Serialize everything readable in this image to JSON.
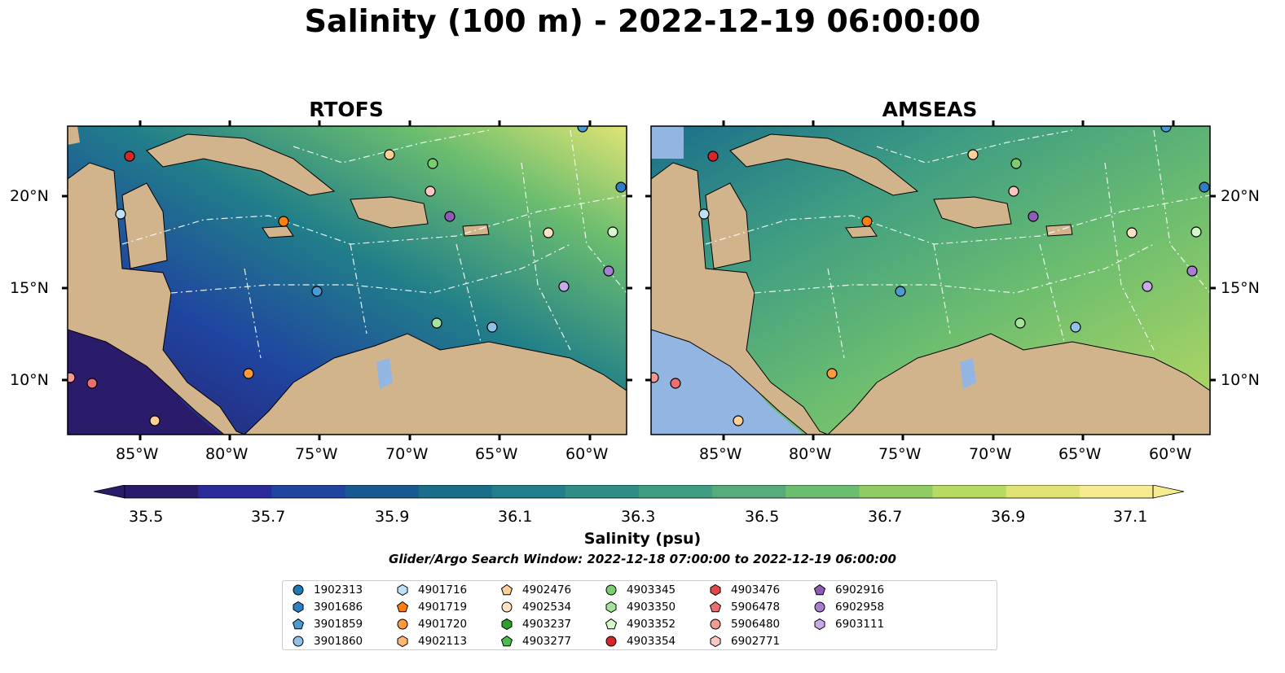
{
  "title": "Salinity (100 m) - 2022-12-19 06:00:00",
  "panels": [
    {
      "title": "RTOFS"
    },
    {
      "title": "AMSEAS"
    }
  ],
  "lon_ticks": [
    "85°W",
    "80°W",
    "75°W",
    "70°W",
    "65°W",
    "60°W"
  ],
  "lat_ticks": [
    "20°N",
    "15°N",
    "10°N"
  ],
  "colorbar": {
    "label": "Salinity (psu)",
    "ticks": [
      "35.5",
      "35.7",
      "35.9",
      "36.1",
      "36.3",
      "36.5",
      "36.7",
      "36.9",
      "37.1"
    ],
    "colors": [
      "#2b1b6b",
      "#2b2a9a",
      "#1f45a0",
      "#175a92",
      "#1a6e8a",
      "#217f89",
      "#2e8e86",
      "#3f9d82",
      "#55ac7a",
      "#6bbd6f",
      "#90cc62",
      "#b8d962",
      "#dfe474",
      "#f6ec8f"
    ],
    "extend": "both"
  },
  "search_window": "Glider/Argo Search Window: 2022-12-18 07:00:00 to 2022-12-19 06:00:00",
  "colors": {
    "land": "#d2b48c",
    "ocean_outside": "#93b5e1"
  },
  "legend": [
    {
      "id": "1902313",
      "marker": "circle",
      "color": "#1f77b4"
    },
    {
      "id": "3901686",
      "marker": "hexagon",
      "color": "#2c7fc2"
    },
    {
      "id": "3901859",
      "marker": "pentagon",
      "color": "#4a9ad6"
    },
    {
      "id": "3901860",
      "marker": "circle",
      "color": "#8fc1ea"
    },
    {
      "id": "4901716",
      "marker": "hexagon",
      "color": "#bfe1f8"
    },
    {
      "id": "4901719",
      "marker": "pentagon",
      "color": "#ff7f0e"
    },
    {
      "id": "4901720",
      "marker": "circle",
      "color": "#ff9a3c"
    },
    {
      "id": "4902113",
      "marker": "hexagon",
      "color": "#ffb870"
    },
    {
      "id": "4902476",
      "marker": "pentagon",
      "color": "#ffcf96"
    },
    {
      "id": "4902534",
      "marker": "circle",
      "color": "#ffe3c4"
    },
    {
      "id": "4903237",
      "marker": "hexagon",
      "color": "#2ca02c"
    },
    {
      "id": "4903277",
      "marker": "pentagon",
      "color": "#4dbb4d"
    },
    {
      "id": "4903345",
      "marker": "circle",
      "color": "#79cf6f"
    },
    {
      "id": "4903350",
      "marker": "hexagon",
      "color": "#a3e39a"
    },
    {
      "id": "4903352",
      "marker": "pentagon",
      "color": "#d5f7cc"
    },
    {
      "id": "4903354",
      "marker": "circle",
      "color": "#d62728"
    },
    {
      "id": "4903476",
      "marker": "hexagon",
      "color": "#e0484a"
    },
    {
      "id": "5906478",
      "marker": "pentagon",
      "color": "#ec6f6f"
    },
    {
      "id": "5906480",
      "marker": "circle",
      "color": "#f49a96"
    },
    {
      "id": "6902771",
      "marker": "hexagon",
      "color": "#fcc7c1"
    },
    {
      "id": "6902916",
      "marker": "pentagon",
      "color": "#8e5bb6"
    },
    {
      "id": "6902958",
      "marker": "circle",
      "color": "#a77fd0"
    },
    {
      "id": "6903111",
      "marker": "hexagon",
      "color": "#c8a9ea"
    }
  ]
}
